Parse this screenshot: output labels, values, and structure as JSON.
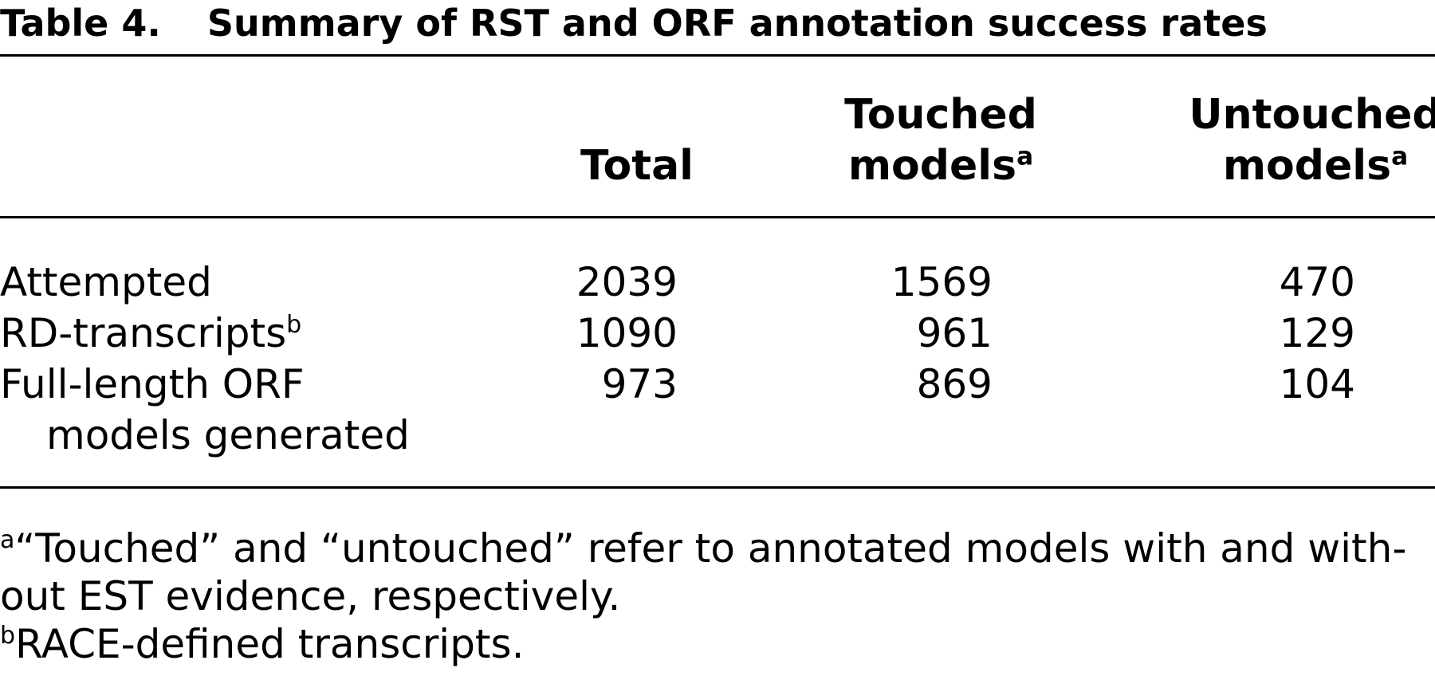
{
  "caption": {
    "label": "Table 4.",
    "title": "Summary of RST and ORF annotation success rates"
  },
  "headers": {
    "total": "Total",
    "touched_line1": "Touched",
    "touched_line2": "models",
    "touched_sup": "a",
    "untouched_line1": "Untouched",
    "untouched_line2": "models",
    "untouched_sup": "a"
  },
  "rows": [
    {
      "label": "Attempted",
      "label_sup": "",
      "label_cont": "",
      "total": "2039",
      "touched": "1569",
      "untouched": "470"
    },
    {
      "label": "RD-transcripts",
      "label_sup": "b",
      "label_cont": "",
      "total": "1090",
      "touched": "961",
      "untouched": "129"
    },
    {
      "label": "Full-length ORF",
      "label_sup": "",
      "label_cont": "models generated",
      "total": "973",
      "touched": "869",
      "untouched": "104"
    }
  ],
  "footnotes": {
    "a_sup": "a",
    "a_line1": "“Touched” and “untouched” refer to annotated models with and with-",
    "a_line2": "out EST evidence, respectively.",
    "b_sup": "b",
    "b_text": "RACE-defined transcripts."
  }
}
